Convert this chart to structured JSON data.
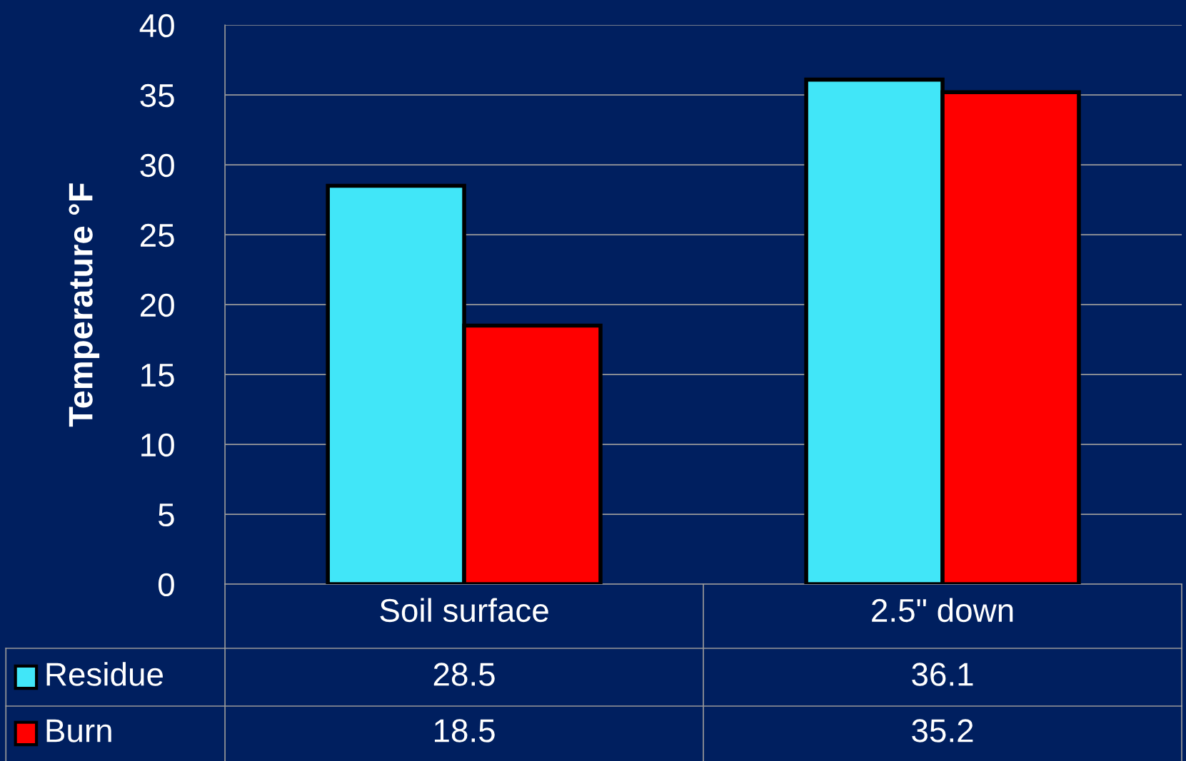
{
  "chart_data": {
    "type": "bar",
    "ylabel": "Temperature °F",
    "categories": [
      "Soil surface",
      "2.5\" down"
    ],
    "series": [
      {
        "name": "Residue",
        "color": "#41e6f8",
        "values": [
          28.5,
          36.1
        ]
      },
      {
        "name": "Burn",
        "color": "#ff0000",
        "values": [
          18.5,
          35.2
        ]
      }
    ],
    "ylim": [
      0,
      40
    ],
    "yticks": [
      0,
      5,
      10,
      15,
      20,
      25,
      30,
      35,
      40
    ],
    "grid": "y",
    "legend": "bottom",
    "data_labels": true
  }
}
